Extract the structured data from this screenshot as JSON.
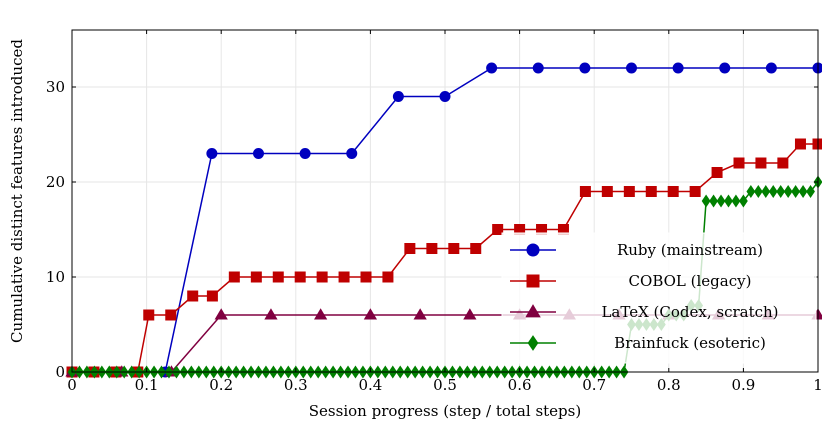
{
  "chart_data": {
    "type": "line",
    "title": "",
    "xlabel": "Session progress (step / total steps)",
    "ylabel": "Cumulative distinct features introduced",
    "xlim": [
      0,
      1
    ],
    "ylim": [
      0,
      36
    ],
    "xticks": [
      0,
      0.1,
      0.2,
      0.3,
      0.4,
      0.5,
      0.6,
      0.7,
      0.8,
      0.9,
      1
    ],
    "xtick_labels": [
      "0",
      "0.1",
      "0.2",
      "0.3",
      "0.4",
      "0.5",
      "0.6",
      "0.7",
      "0.8",
      "0.9",
      "1"
    ],
    "yticks": [
      0,
      10,
      20,
      30
    ],
    "ytick_labels": [
      "0",
      "10",
      "20",
      "30"
    ],
    "grid": true,
    "legend_position": "lower-right",
    "series": [
      {
        "name": "Ruby (mainstream)",
        "color": "#0000bf",
        "marker": "circle",
        "x": [
          0,
          0.0625,
          0.125,
          0.1875,
          0.25,
          0.3125,
          0.375,
          0.4375,
          0.5,
          0.5625,
          0.625,
          0.6875,
          0.75,
          0.8125,
          0.875,
          0.9375,
          1
        ],
        "y": [
          0,
          0,
          0,
          23,
          23,
          23,
          23,
          29,
          29,
          32,
          32,
          32,
          32,
          32,
          32,
          32,
          32
        ]
      },
      {
        "name": "COBOL (legacy)",
        "color": "#bf0000",
        "marker": "square",
        "x": [
          0,
          0.0294,
          0.0588,
          0.0882,
          0.1029,
          0.1324,
          0.1618,
          0.1882,
          0.2176,
          0.2471,
          0.2765,
          0.3059,
          0.3353,
          0.3647,
          0.3941,
          0.4235,
          0.4529,
          0.4824,
          0.5118,
          0.5412,
          0.5706,
          0.6,
          0.6294,
          0.6588,
          0.6882,
          0.7176,
          0.7471,
          0.7765,
          0.8059,
          0.8353,
          0.8647,
          0.8941,
          0.9235,
          0.9529,
          0.9765,
          1
        ],
        "y": [
          0,
          0,
          0,
          0,
          6,
          6,
          8,
          8,
          10,
          10,
          10,
          10,
          10,
          10,
          10,
          10,
          13,
          13,
          13,
          13,
          15,
          15,
          15,
          15,
          19,
          19,
          19,
          19,
          19,
          19,
          21,
          22,
          22,
          22,
          24,
          24
        ]
      },
      {
        "name": "LaTeX (Codex, scratch)",
        "color": "#800040",
        "marker": "triangle",
        "x": [
          0,
          0.0667,
          0.1333,
          0.2,
          0.2667,
          0.3333,
          0.4,
          0.4667,
          0.5333,
          0.6,
          0.6667,
          0.7333,
          0.8,
          0.8667,
          0.9333,
          1
        ],
        "y": [
          0,
          0,
          0,
          6,
          6,
          6,
          6,
          6,
          6,
          6,
          6,
          6,
          6,
          6,
          6,
          6
        ]
      },
      {
        "name": "Brainfuck (esoteric)",
        "color": "#008000",
        "marker": "diamond",
        "x": [
          0,
          0.01,
          0.02,
          0.03,
          0.04,
          0.05,
          0.06,
          0.07,
          0.08,
          0.09,
          0.1,
          0.11,
          0.12,
          0.13,
          0.14,
          0.15,
          0.16,
          0.17,
          0.18,
          0.19,
          0.2,
          0.21,
          0.22,
          0.23,
          0.24,
          0.25,
          0.26,
          0.27,
          0.28,
          0.29,
          0.3,
          0.31,
          0.32,
          0.33,
          0.34,
          0.35,
          0.36,
          0.37,
          0.38,
          0.39,
          0.4,
          0.41,
          0.42,
          0.43,
          0.44,
          0.45,
          0.46,
          0.47,
          0.48,
          0.49,
          0.5,
          0.51,
          0.52,
          0.53,
          0.54,
          0.55,
          0.56,
          0.57,
          0.58,
          0.59,
          0.6,
          0.61,
          0.62,
          0.63,
          0.64,
          0.65,
          0.66,
          0.67,
          0.68,
          0.69,
          0.7,
          0.71,
          0.72,
          0.73,
          0.74,
          0.75,
          0.76,
          0.77,
          0.78,
          0.79,
          0.8,
          0.81,
          0.82,
          0.83,
          0.84,
          0.85,
          0.86,
          0.87,
          0.88,
          0.89,
          0.9,
          0.91,
          0.92,
          0.93,
          0.94,
          0.95,
          0.96,
          0.97,
          0.98,
          0.99,
          1
        ],
        "y": [
          0,
          0,
          0,
          0,
          0,
          0,
          0,
          0,
          0,
          0,
          0,
          0,
          0,
          0,
          0,
          0,
          0,
          0,
          0,
          0,
          0,
          0,
          0,
          0,
          0,
          0,
          0,
          0,
          0,
          0,
          0,
          0,
          0,
          0,
          0,
          0,
          0,
          0,
          0,
          0,
          0,
          0,
          0,
          0,
          0,
          0,
          0,
          0,
          0,
          0,
          0,
          0,
          0,
          0,
          0,
          0,
          0,
          0,
          0,
          0,
          0,
          0,
          0,
          0,
          0,
          0,
          0,
          0,
          0,
          0,
          0,
          0,
          0,
          0,
          0,
          5,
          5,
          5,
          5,
          5,
          6,
          6,
          6,
          7,
          7,
          18,
          18,
          18,
          18,
          18,
          18,
          19,
          19,
          19,
          19,
          19,
          19,
          19,
          19,
          19,
          20
        ]
      }
    ]
  }
}
